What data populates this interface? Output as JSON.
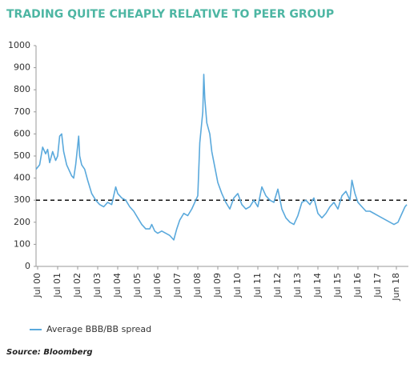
{
  "chart_data": {
    "type": "line",
    "title": "TRADING QUITE CHEAPLY RELATIVE TO PEER GROUP",
    "source": "Source: Bloomberg",
    "x": [
      2000.42,
      2000.6,
      2000.75,
      2000.9,
      2001.0,
      2001.1,
      2001.25,
      2001.4,
      2001.5,
      2001.6,
      2001.7,
      2001.8,
      2001.95,
      2002.1,
      2002.2,
      2002.3,
      2002.4,
      2002.55,
      2002.6,
      2002.7,
      2002.85,
      2003.0,
      2003.2,
      2003.4,
      2003.6,
      2003.8,
      2004.0,
      2004.2,
      2004.4,
      2004.5,
      2004.7,
      2004.9,
      2005.1,
      2005.3,
      2005.5,
      2005.7,
      2005.9,
      2006.1,
      2006.2,
      2006.35,
      2006.5,
      2006.7,
      2006.9,
      2007.1,
      2007.3,
      2007.45,
      2007.6,
      2007.8,
      2008.0,
      2008.2,
      2008.4,
      2008.5,
      2008.6,
      2008.75,
      2008.8,
      2008.85,
      2008.95,
      2009.1,
      2009.2,
      2009.35,
      2009.5,
      2009.7,
      2009.9,
      2010.1,
      2010.3,
      2010.5,
      2010.7,
      2010.9,
      2011.1,
      2011.3,
      2011.5,
      2011.7,
      2011.9,
      2012.1,
      2012.3,
      2012.5,
      2012.7,
      2012.9,
      2013.1,
      2013.3,
      2013.5,
      2013.7,
      2013.9,
      2014.1,
      2014.3,
      2014.5,
      2014.7,
      2014.9,
      2015.1,
      2015.3,
      2015.5,
      2015.7,
      2015.9,
      2016.1,
      2016.2,
      2016.35,
      2016.5,
      2016.7,
      2016.9,
      2017.1,
      2017.3,
      2017.5,
      2017.7,
      2017.9,
      2018.1,
      2018.3,
      2018.5,
      2018.7,
      2018.85,
      2018.94
    ],
    "series": [
      {
        "name": "Average BBB/BB spread",
        "color": "#5aa9dc",
        "values": [
          440,
          460,
          540,
          510,
          530,
          470,
          520,
          480,
          500,
          590,
          600,
          520,
          460,
          430,
          410,
          400,
          460,
          590,
          500,
          460,
          440,
          390,
          330,
          300,
          280,
          270,
          290,
          280,
          360,
          330,
          310,
          300,
          270,
          250,
          220,
          190,
          170,
          170,
          190,
          160,
          150,
          160,
          150,
          140,
          120,
          170,
          210,
          240,
          230,
          260,
          300,
          320,
          560,
          700,
          870,
          760,
          650,
          600,
          520,
          450,
          380,
          330,
          290,
          260,
          310,
          330,
          280,
          260,
          270,
          300,
          270,
          360,
          320,
          300,
          290,
          350,
          260,
          220,
          200,
          190,
          230,
          290,
          300,
          280,
          310,
          240,
          220,
          240,
          270,
          290,
          260,
          320,
          340,
          300,
          390,
          330,
          290,
          270,
          250,
          250,
          240,
          230,
          220,
          210,
          200,
          190,
          200,
          240,
          270,
          280
        ]
      }
    ],
    "reference_line": 300,
    "xlim": [
      2000.42,
      2018.94
    ],
    "xticks": [
      {
        "value": 2000.5,
        "label": "Jul 00"
      },
      {
        "value": 2001.5,
        "label": "Jul 01"
      },
      {
        "value": 2002.5,
        "label": "Jul 02"
      },
      {
        "value": 2003.5,
        "label": "Jul 03"
      },
      {
        "value": 2004.5,
        "label": "Jul 04"
      },
      {
        "value": 2005.5,
        "label": "Jul 05"
      },
      {
        "value": 2006.5,
        "label": "Jul 06"
      },
      {
        "value": 2007.5,
        "label": "Jul 07"
      },
      {
        "value": 2008.5,
        "label": "Jul 08"
      },
      {
        "value": 2009.5,
        "label": "Jul 09"
      },
      {
        "value": 2010.5,
        "label": "Jul 10"
      },
      {
        "value": 2011.5,
        "label": "Jul 11"
      },
      {
        "value": 2012.5,
        "label": "Jul 12"
      },
      {
        "value": 2013.5,
        "label": "Jul 13"
      },
      {
        "value": 2014.5,
        "label": "Jul 14"
      },
      {
        "value": 2015.5,
        "label": "Jul 15"
      },
      {
        "value": 2016.5,
        "label": "Jul 16"
      },
      {
        "value": 2017.5,
        "label": "Jul 17"
      },
      {
        "value": 2018.42,
        "label": "Jun 18"
      }
    ],
    "ylim": [
      0,
      1000
    ],
    "yticks": [
      0,
      100,
      200,
      300,
      400,
      500,
      600,
      700,
      800,
      900,
      1000
    ]
  }
}
